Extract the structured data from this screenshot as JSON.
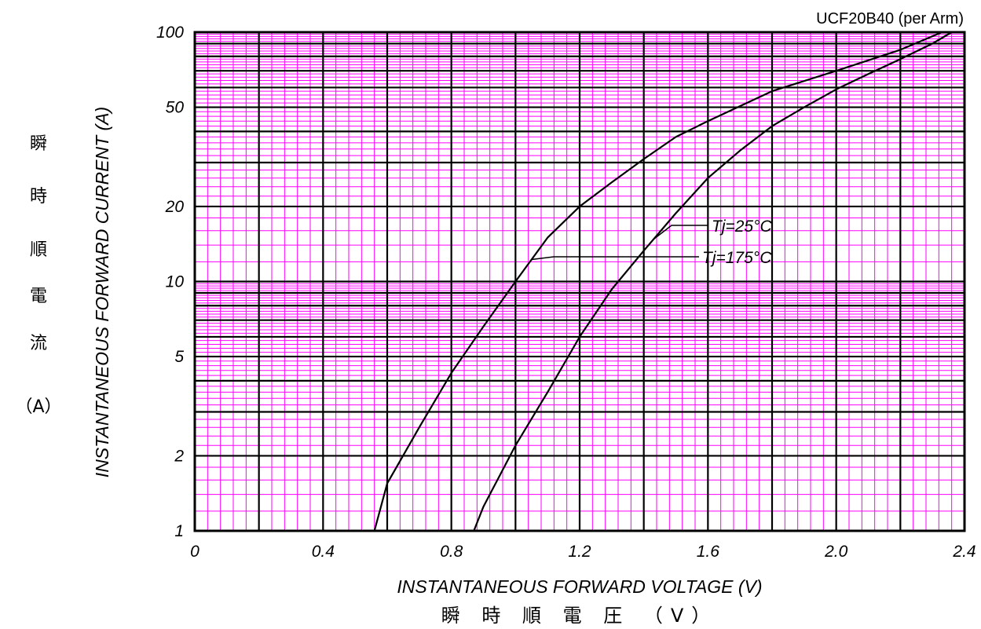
{
  "chart_data": {
    "type": "line",
    "title": "UCF20B40 (per Arm)",
    "xlabel": "INSTANTANEOUS FORWARD VOLTAGE (V)",
    "xlabel_jp": "瞬 時 順 電 圧 （V）",
    "ylabel": "INSTANTANEOUS FORWARD CURRENT (A)",
    "ylabel_jp": [
      "瞬",
      "時",
      "順",
      "電",
      "流",
      "（A）"
    ],
    "x_scale": "linear",
    "y_scale": "log",
    "xlim": [
      0,
      2.4
    ],
    "ylim": [
      1,
      100
    ],
    "x_ticks": [
      0,
      0.4,
      0.8,
      1.2,
      1.6,
      2.0,
      2.4
    ],
    "x_tick_labels": [
      "0",
      "0.4",
      "0.8",
      "1.2",
      "1.6",
      "2.0",
      "2.4"
    ],
    "y_ticks": [
      1,
      2,
      5,
      10,
      20,
      50,
      100
    ],
    "y_tick_labels": [
      "1",
      "2",
      "5",
      "10",
      "20",
      "50",
      "100"
    ],
    "grid": true,
    "series": [
      {
        "name": "Tj=175°C",
        "x": [
          0.56,
          0.6,
          0.7,
          0.8,
          0.9,
          1.0,
          1.1,
          1.2,
          1.3,
          1.4,
          1.5,
          1.6,
          1.8,
          2.0,
          2.2,
          2.33
        ],
        "y": [
          1.0,
          1.55,
          2.6,
          4.3,
          6.6,
          10.0,
          15.0,
          20.0,
          25.0,
          31.0,
          38.0,
          44.0,
          58.0,
          70.0,
          85.0,
          100.0
        ]
      },
      {
        "name": "Tj=25°C",
        "x": [
          0.87,
          0.9,
          1.0,
          1.1,
          1.2,
          1.3,
          1.4,
          1.5,
          1.6,
          1.7,
          1.8,
          1.9,
          2.0,
          2.1,
          2.2,
          2.3,
          2.36
        ],
        "y": [
          1.0,
          1.25,
          2.2,
          3.6,
          6.0,
          9.3,
          13.3,
          18.8,
          26.0,
          33.5,
          42.0,
          50.0,
          59.0,
          68.0,
          78.0,
          90.0,
          100.0
        ]
      }
    ],
    "annotations": [
      {
        "text": "Tj=25°C",
        "target_series": "Tj=25°C",
        "at_x": 1.43
      },
      {
        "text": "Tj=175°C",
        "target_series": "Tj=175°C",
        "at_x": 1.05
      }
    ],
    "colors": {
      "major_grid": "#000000",
      "minor_grid": "#ff00ff",
      "curve": "#000000"
    }
  }
}
